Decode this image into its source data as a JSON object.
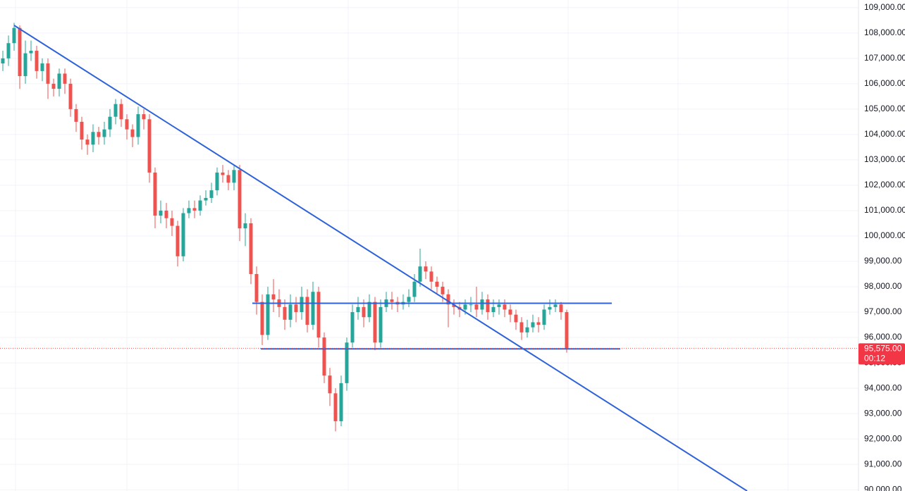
{
  "chart_data": {
    "type": "candlestick",
    "up_color": "#26a69a",
    "down_color": "#ef5350",
    "open": [
      106800,
      107000,
      107600,
      108200,
      106300,
      107200,
      107300,
      106500,
      106800,
      106000,
      105800,
      106400,
      106000,
      105000,
      104500,
      103800,
      103600,
      104100,
      103900,
      104200,
      104700,
      105200,
      104600,
      104200,
      103900,
      104800,
      104600,
      102500,
      100800,
      101000,
      100700,
      100400,
      99200,
      100900,
      101100,
      101000,
      101400,
      101500,
      101800,
      102500,
      102400,
      102100,
      102600,
      100300,
      100500,
      98500,
      97400,
      96100,
      97700,
      97500,
      97200,
      96700,
      97300,
      97000,
      97600,
      96500,
      97800,
      96000,
      94500,
      93800,
      92700,
      94200,
      95800,
      97000,
      97200,
      96800,
      97400,
      95800,
      97200,
      97500,
      97400,
      97300,
      97400,
      97600,
      98200,
      98800,
      98600,
      98200,
      98000,
      97700,
      97300,
      97200,
      97100,
      97300,
      97300,
      97100,
      97500,
      97000,
      97200,
      97300,
      97100,
      96900,
      96600,
      96200,
      96400,
      96600,
      96500,
      97100,
      97200,
      97300,
      97000
    ],
    "high": [
      107300,
      107900,
      108400,
      108300,
      107700,
      107700,
      107500,
      107000,
      107000,
      106200,
      106600,
      106600,
      106200,
      105200,
      104700,
      104000,
      104400,
      104300,
      104500,
      105000,
      105400,
      105400,
      104800,
      104400,
      105100,
      105000,
      104800,
      102700,
      101400,
      101300,
      101000,
      100600,
      101100,
      101400,
      101400,
      101600,
      101800,
      102100,
      102700,
      102800,
      102600,
      102800,
      102800,
      100900,
      100700,
      98800,
      97700,
      98000,
      98300,
      97900,
      97500,
      97700,
      97600,
      98000,
      97900,
      98200,
      98000,
      96200,
      94800,
      94000,
      94500,
      96000,
      97300,
      97600,
      97500,
      97700,
      97600,
      97500,
      97800,
      97800,
      97600,
      97700,
      97900,
      98500,
      99500,
      99000,
      98800,
      98400,
      98200,
      97900,
      97500,
      97400,
      97500,
      97600,
      98000,
      97800,
      97700,
      97500,
      97500,
      97500,
      97300,
      97100,
      96800,
      96700,
      96900,
      96800,
      97300,
      97500,
      97500,
      97400,
      97100
    ],
    "low": [
      106500,
      106700,
      107300,
      105800,
      106000,
      106900,
      106200,
      106100,
      105400,
      105500,
      105500,
      105600,
      104700,
      104100,
      103400,
      103200,
      103300,
      103600,
      103600,
      103900,
      104400,
      104300,
      103800,
      103500,
      103600,
      104200,
      102100,
      100300,
      100500,
      100300,
      100000,
      98800,
      99000,
      100700,
      100700,
      100800,
      101200,
      101300,
      101600,
      102100,
      101800,
      101800,
      99800,
      99600,
      98100,
      96900,
      95700,
      95900,
      97000,
      96800,
      96300,
      96400,
      96600,
      96700,
      96200,
      96300,
      95600,
      94200,
      93300,
      92300,
      92500,
      93900,
      95600,
      96700,
      96400,
      96600,
      95500,
      95600,
      97000,
      97100,
      97000,
      97100,
      97200,
      97400,
      98000,
      98300,
      97900,
      97700,
      97400,
      96400,
      96900,
      96800,
      96900,
      97000,
      96800,
      96900,
      96700,
      96800,
      96900,
      96800,
      96600,
      96300,
      95900,
      96000,
      96200,
      96200,
      96300,
      96900,
      97000,
      96700,
      95400
    ],
    "close": [
      107000,
      107600,
      108200,
      106300,
      107200,
      107300,
      106500,
      106800,
      106000,
      105800,
      106400,
      106000,
      105000,
      104500,
      103800,
      103600,
      104100,
      103900,
      104200,
      104700,
      105200,
      104600,
      104200,
      103900,
      104800,
      104600,
      102500,
      100800,
      101000,
      100700,
      100400,
      99200,
      100900,
      101100,
      101000,
      101400,
      101500,
      101800,
      102500,
      102400,
      102100,
      102600,
      100300,
      100500,
      98500,
      97400,
      96100,
      97700,
      97500,
      97200,
      96700,
      97300,
      97000,
      97600,
      96500,
      97800,
      96000,
      94500,
      93800,
      92700,
      94200,
      95800,
      97000,
      97200,
      96800,
      97400,
      95800,
      97200,
      97500,
      97400,
      97300,
      97400,
      97600,
      98200,
      98800,
      98600,
      98200,
      98000,
      97700,
      97300,
      97200,
      97100,
      97300,
      97300,
      97100,
      97500,
      97000,
      97200,
      97300,
      97100,
      96900,
      96600,
      96200,
      96400,
      96600,
      96500,
      97100,
      97200,
      97300,
      97000,
      95575
    ],
    "ylim": [
      89950,
      109300
    ],
    "yticks": [
      {
        "value": 90000,
        "label": "90,000.00"
      },
      {
        "value": 91000,
        "label": "91,000.00"
      },
      {
        "value": 92000,
        "label": "92,000.00"
      },
      {
        "value": 93000,
        "label": "93,000.00"
      },
      {
        "value": 94000,
        "label": "94,000.00"
      },
      {
        "value": 95000,
        "label": "95,000.00"
      },
      {
        "value": 96000,
        "label": "96,000.00"
      },
      {
        "value": 97000,
        "label": "97,000.00"
      },
      {
        "value": 98000,
        "label": "98,000.00"
      },
      {
        "value": 99000,
        "label": "99,000.00"
      },
      {
        "value": 100000,
        "label": "100,000.00"
      },
      {
        "value": 101000,
        "label": "101,000.00"
      },
      {
        "value": 102000,
        "label": "102,000.00"
      },
      {
        "value": 103000,
        "label": "103,000.00"
      },
      {
        "value": 104000,
        "label": "104,000.00"
      },
      {
        "value": 105000,
        "label": "105,000.00"
      },
      {
        "value": 106000,
        "label": "106,000.00"
      },
      {
        "value": 107000,
        "label": "107,000.00"
      },
      {
        "value": 108000,
        "label": "108,000.00"
      },
      {
        "value": 109000,
        "label": "109,000.00"
      }
    ],
    "grid": true,
    "last_price": {
      "value": 95575,
      "label": "95,575.00"
    },
    "countdown": "00:12",
    "trendlines": [
      {
        "color": "#2e62d9",
        "points": [
          [
            2,
            108300
          ],
          [
            132,
            89950
          ]
        ]
      },
      {
        "color": "#2e62d9",
        "points": [
          [
            44.25,
            97350
          ],
          [
            108,
            97350
          ]
        ]
      },
      {
        "color": "#2e62d9",
        "points": [
          [
            45.75,
            95550
          ],
          [
            109.5,
            95550
          ]
        ]
      }
    ]
  }
}
